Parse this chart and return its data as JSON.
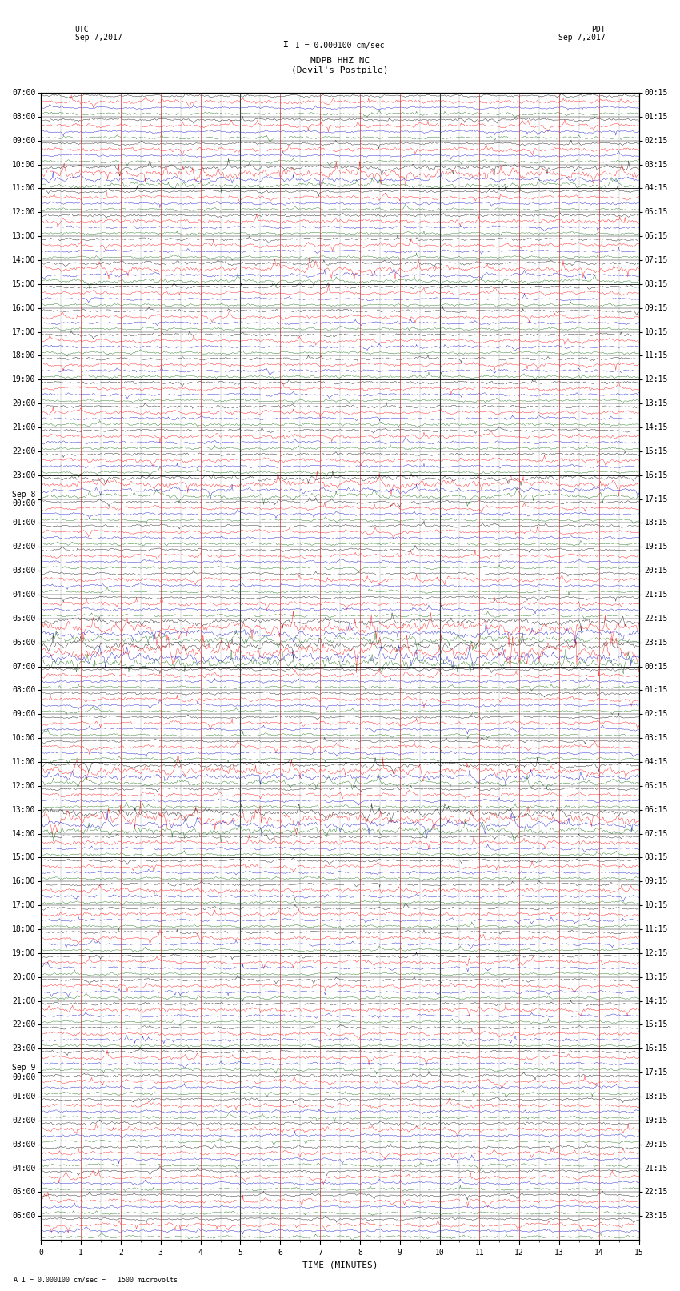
{
  "title_line1": "MDPB HHZ NC",
  "title_line2": "(Devil's Postpile)",
  "scale_label": "I = 0.000100 cm/sec",
  "footer_label": "A I = 0.000100 cm/sec =   1500 microvolts",
  "xlabel": "TIME (MINUTES)",
  "left_header_line1": "UTC",
  "left_header_line2": "Sep 7,2017",
  "right_header_line1": "PDT",
  "right_header_line2": "Sep 7,2017",
  "num_rows": 48,
  "minutes_per_row": 15,
  "bg_color": "#ffffff",
  "trace_colors": [
    "#000000",
    "#ff0000",
    "#0000cc",
    "#006600"
  ],
  "grid_color_v_major": "#888888",
  "grid_color_v_minor": "#cc0000",
  "grid_color_h": "#000000",
  "axis_label_fontsize": 8,
  "title_fontsize": 8,
  "tick_fontsize": 7,
  "fig_width": 8.5,
  "fig_height": 16.13,
  "pdt_labels": [
    "00:15",
    "01:15",
    "02:15",
    "03:15",
    "04:15",
    "05:15",
    "06:15",
    "07:15",
    "08:15",
    "09:15",
    "10:15",
    "11:15",
    "12:15",
    "13:15",
    "14:15",
    "15:15",
    "16:15",
    "17:15",
    "18:15",
    "19:15",
    "20:15",
    "21:15",
    "22:15",
    "23:15",
    "00:15",
    "01:15",
    "02:15",
    "03:15",
    "04:15",
    "05:15",
    "06:15",
    "07:15",
    "08:15",
    "09:15",
    "10:15",
    "11:15",
    "12:15",
    "13:15",
    "14:15",
    "15:15",
    "16:15",
    "17:15",
    "18:15",
    "19:15",
    "20:15",
    "21:15",
    "22:15",
    "23:15"
  ],
  "utc_labels": [
    "07:00",
    "08:00",
    "09:00",
    "10:00",
    "11:00",
    "12:00",
    "13:00",
    "14:00",
    "15:00",
    "16:00",
    "17:00",
    "18:00",
    "19:00",
    "20:00",
    "21:00",
    "22:00",
    "23:00",
    "00:00",
    "01:00",
    "02:00",
    "03:00",
    "04:00",
    "05:00",
    "06:00",
    "07:00",
    "08:00",
    "09:00",
    "10:00",
    "11:00",
    "12:00",
    "13:00",
    "14:00",
    "15:00",
    "16:00",
    "17:00",
    "18:00",
    "19:00",
    "20:00",
    "21:00",
    "22:00",
    "23:00",
    "00:00",
    "01:00",
    "02:00",
    "03:00",
    "04:00",
    "05:00",
    "06:00"
  ],
  "sep8_row": 17,
  "sep9_row": 41,
  "n_traces_per_row": 4,
  "pts_per_row": 1500
}
